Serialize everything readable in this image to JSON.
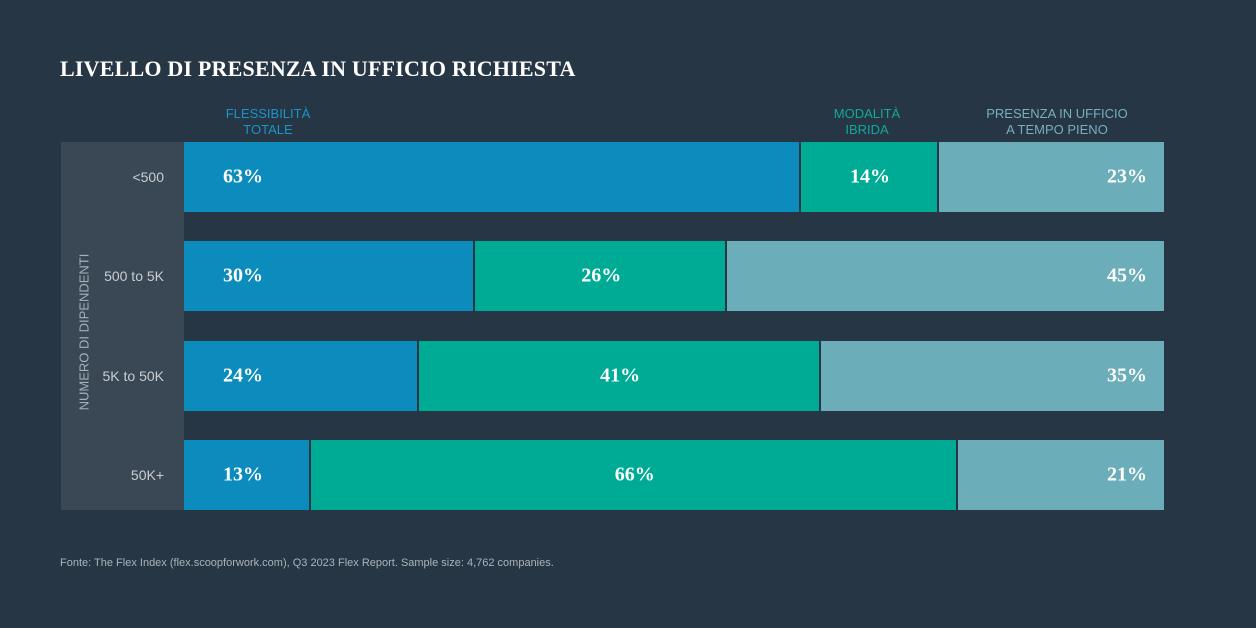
{
  "title": "LIVELLO DI PRESENZA IN UFFICIO RICHIESTA",
  "source": "Fonte: The Flex Index (flex.scoopforwork.com), Q3 2023 Flex Report. Sample size: 4,762 companies.",
  "chart_data": {
    "type": "bar",
    "orientation": "horizontal",
    "stacked": true,
    "ylabel": "NUMERO DI DIPENDENTI",
    "categories": [
      "<500",
      "500 to 5K",
      "5K to 50K",
      "50K+"
    ],
    "series": [
      {
        "name": "FLESSIBILITÀ TOTALE",
        "name_lines": [
          "FLESSIBILITÀ",
          "TOTALE"
        ],
        "color": "#0b8cbc",
        "header_color": "#1c93c9",
        "values": [
          63,
          30,
          24,
          13
        ]
      },
      {
        "name": "MODALITÀ IBRIDA",
        "name_lines": [
          "MODALITÀ",
          "IBRIDA"
        ],
        "color": "#00ab96",
        "header_color": "#13a89a",
        "values": [
          14,
          26,
          41,
          66
        ]
      },
      {
        "name": "PRESENZA IN UFFICIO A TEMPO PIENO",
        "name_lines": [
          "PRESENZA IN UFFICIO",
          "A TEMPO PIENO"
        ],
        "color": "#6badb9",
        "header_color": "#78aebd",
        "values": [
          23,
          45,
          35,
          21
        ]
      }
    ],
    "data_labels": [
      [
        "63%",
        "14%",
        "23%"
      ],
      [
        "30%",
        "26%",
        "45%"
      ],
      [
        "24%",
        "41%",
        "35%"
      ],
      [
        "13%",
        "66%",
        "21%"
      ]
    ],
    "legend": "top",
    "grid": false
  }
}
